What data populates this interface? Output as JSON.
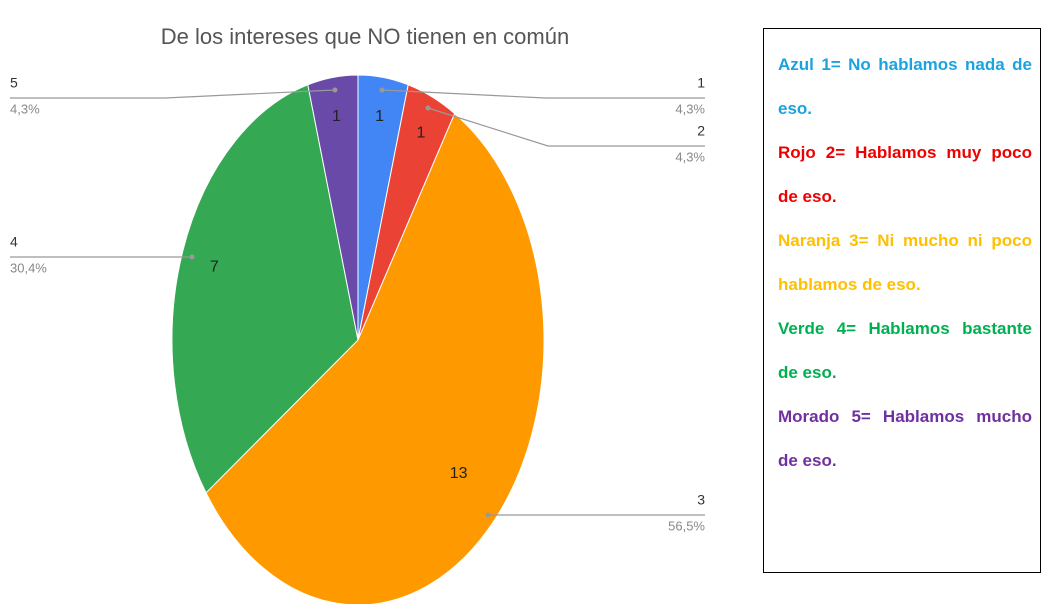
{
  "chart_data": {
    "type": "pie",
    "title": "De los intereses que NO tienen en común",
    "categories": [
      "1",
      "2",
      "3",
      "4",
      "5"
    ],
    "values": [
      1,
      1,
      13,
      7,
      1
    ],
    "percent_labels": [
      "4,3%",
      "4,3%",
      "56,5%",
      "30,4%",
      "4,3%"
    ],
    "colors": [
      "#4285f4",
      "#ea4335",
      "#ff9900",
      "#34a853",
      "#6a4aa8"
    ],
    "notes": [
      {
        "text": "Azul 1= No hablamos nada de eso.",
        "color": "#1aa3e0"
      },
      {
        "text": "Rojo 2= Hablamos muy poco de eso.",
        "color": "#ee0000"
      },
      {
        "text": "Naranja 3= Ni mucho ni poco hablamos de eso.",
        "color": "#ffc000"
      },
      {
        "text": "Verde 4= Hablamos bastante de eso.",
        "color": "#00b050"
      },
      {
        "text": "Morado 5= Hablamos mucho de eso.",
        "color": "#7030a0"
      }
    ]
  }
}
